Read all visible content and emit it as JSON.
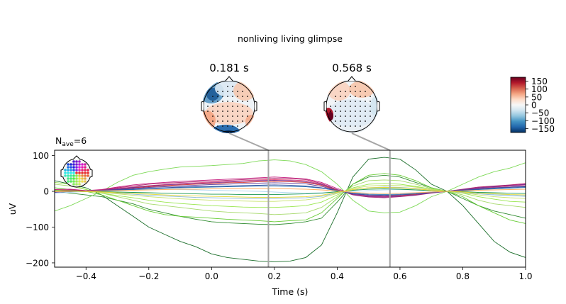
{
  "suptitle": "nonliving living glimpse",
  "topomaps": [
    {
      "label": "0.181 s",
      "time": 0.181
    },
    {
      "label": "0.568 s",
      "time": 0.568
    }
  ],
  "colorbar": {
    "ticks": [
      150,
      100,
      50,
      0,
      -50,
      -100,
      -150
    ],
    "tick_labels": [
      "150",
      "100",
      "50",
      "0",
      "−50",
      "−100",
      "−150"
    ],
    "range": [
      -175,
      175
    ],
    "cmap": "RdBu_r",
    "colors": [
      "#053061",
      "#2166ac",
      "#4393c3",
      "#92c5de",
      "#d1e5f0",
      "#f7f7f7",
      "#fddbc7",
      "#f4a582",
      "#d6604d",
      "#b2182b",
      "#67001f"
    ]
  },
  "annotation": {
    "prefix": "N",
    "subscript": "ave",
    "suffix": "=6"
  },
  "chart_data": {
    "type": "line",
    "title": "",
    "xlabel": "Time (s)",
    "ylabel": "uV",
    "xlim": [
      -0.5,
      1.0
    ],
    "ylim": [
      -212,
      115
    ],
    "xticks": [
      -0.4,
      -0.2,
      0.0,
      0.2,
      0.4,
      0.6,
      0.8,
      1.0
    ],
    "xtick_labels": [
      "−0.4",
      "−0.2",
      "0.0",
      "0.2",
      "0.4",
      "0.6",
      "0.8",
      "1.0"
    ],
    "yticks": [
      100,
      0,
      -100,
      -200
    ],
    "ytick_labels": [
      "100",
      "0",
      "−100",
      "−200"
    ],
    "grid": false,
    "marker_times": [
      0.181,
      0.568
    ],
    "x": [
      -0.5,
      -0.45,
      -0.4,
      -0.35,
      -0.3,
      -0.25,
      -0.2,
      -0.15,
      -0.1,
      -0.05,
      0.0,
      0.05,
      0.1,
      0.15,
      0.2,
      0.25,
      0.3,
      0.35,
      0.4,
      0.45,
      0.5,
      0.55,
      0.6,
      0.65,
      0.7,
      0.75,
      0.8,
      0.85,
      0.9,
      0.95,
      1.0
    ],
    "series": [
      {
        "color": "#1b6e2a",
        "values": [
          30,
          20,
          10,
          -10,
          -40,
          -70,
          -100,
          -120,
          -140,
          -155,
          -175,
          -185,
          -190,
          -195,
          -197,
          -195,
          -185,
          -150,
          -60,
          40,
          90,
          95,
          90,
          60,
          20,
          0,
          -40,
          -90,
          -140,
          -170,
          -185
        ]
      },
      {
        "color": "#2e8b2e",
        "values": [
          0,
          -5,
          -10,
          -15,
          -25,
          -35,
          -50,
          -60,
          -70,
          -78,
          -85,
          -88,
          -90,
          -92,
          -93,
          -90,
          -85,
          -75,
          -30,
          20,
          40,
          45,
          40,
          25,
          10,
          0,
          -20,
          -40,
          -55,
          -65,
          -75
        ]
      },
      {
        "color": "#7ed957",
        "values": [
          -55,
          -40,
          -20,
          0,
          25,
          45,
          55,
          62,
          68,
          70,
          72,
          75,
          78,
          85,
          88,
          85,
          75,
          55,
          20,
          -25,
          -55,
          -60,
          -58,
          -40,
          -15,
          0,
          20,
          40,
          55,
          65,
          80
        ]
      },
      {
        "color": "#66cc33",
        "values": [
          10,
          5,
          0,
          -10,
          -25,
          -40,
          -55,
          -65,
          -70,
          -72,
          -75,
          -78,
          -80,
          -82,
          -85,
          -82,
          -80,
          -60,
          -20,
          20,
          45,
          50,
          45,
          30,
          10,
          0,
          -15,
          -40,
          -60,
          -80,
          -90
        ]
      },
      {
        "color": "#a6d96a",
        "values": [
          20,
          15,
          5,
          -5,
          -15,
          -25,
          -35,
          -40,
          -45,
          -50,
          -55,
          -58,
          -60,
          -62,
          -65,
          -63,
          -60,
          -45,
          -15,
          15,
          30,
          32,
          30,
          20,
          8,
          0,
          -10,
          -25,
          -35,
          -40,
          -45
        ]
      },
      {
        "color": "#99e64d",
        "values": [
          25,
          20,
          5,
          -5,
          -12,
          -18,
          -25,
          -30,
          -34,
          -37,
          -40,
          -42,
          -44,
          -45,
          -45,
          -43,
          -40,
          -30,
          -10,
          10,
          20,
          22,
          20,
          14,
          6,
          0,
          -5,
          -15,
          -22,
          -28,
          -30
        ]
      },
      {
        "color": "#c6e26b",
        "values": [
          5,
          3,
          0,
          -3,
          -7,
          -11,
          -15,
          -18,
          -21,
          -23,
          -25,
          -26,
          -27,
          -28,
          -28,
          -26,
          -24,
          -18,
          -6,
          8,
          15,
          17,
          16,
          12,
          5,
          0,
          -4,
          -10,
          -15,
          -18,
          -20
        ]
      },
      {
        "color": "#8ab8d9",
        "values": [
          0,
          2,
          0,
          -2,
          -5,
          -8,
          -11,
          -13,
          -15,
          -17,
          -18,
          -19,
          -20,
          -20,
          -20,
          -19,
          -18,
          -14,
          -4,
          5,
          10,
          12,
          11,
          8,
          3,
          0,
          -3,
          -7,
          -10,
          -12,
          -14
        ]
      },
      {
        "color": "#b3d9f2",
        "values": [
          -5,
          -3,
          0,
          2,
          4,
          5,
          6,
          6,
          5,
          4,
          3,
          2,
          1,
          0,
          -2,
          -4,
          -5,
          -4,
          -2,
          0,
          2,
          4,
          5,
          4,
          2,
          0,
          -2,
          -5,
          -8,
          -10,
          -12
        ]
      },
      {
        "color": "#c51b7d",
        "values": [
          5,
          6,
          2,
          5,
          12,
          18,
          22,
          25,
          28,
          30,
          32,
          34,
          36,
          38,
          40,
          38,
          35,
          25,
          8,
          -8,
          -14,
          -15,
          -14,
          -10,
          -4,
          0,
          5,
          10,
          14,
          17,
          20
        ]
      },
      {
        "color": "#b2256e",
        "values": [
          2,
          4,
          0,
          4,
          10,
          15,
          20,
          23,
          25,
          27,
          29,
          31,
          33,
          35,
          37,
          36,
          33,
          22,
          5,
          -10,
          -16,
          -18,
          -15,
          -11,
          -5,
          0,
          6,
          12,
          15,
          18,
          22
        ]
      },
      {
        "color": "#e0457b",
        "values": [
          -2,
          2,
          1,
          3,
          8,
          12,
          16,
          19,
          22,
          24,
          26,
          28,
          30,
          32,
          33,
          32,
          30,
          20,
          4,
          -8,
          -13,
          -14,
          -12,
          -9,
          -4,
          0,
          4,
          9,
          12,
          15,
          18
        ]
      },
      {
        "color": "#d73027",
        "values": [
          0,
          3,
          1,
          2,
          6,
          10,
          13,
          16,
          18,
          20,
          22,
          24,
          25,
          27,
          28,
          27,
          25,
          17,
          3,
          -7,
          -11,
          -12,
          -11,
          -8,
          -3,
          0,
          3,
          7,
          10,
          12,
          14
        ]
      },
      {
        "color": "#7b3294",
        "values": [
          -3,
          0,
          0,
          3,
          7,
          11,
          15,
          18,
          20,
          22,
          24,
          26,
          28,
          30,
          31,
          30,
          27,
          19,
          5,
          -9,
          -15,
          -16,
          -14,
          -10,
          -4,
          0,
          5,
          10,
          13,
          16,
          19
        ]
      },
      {
        "color": "#5e3c99",
        "values": [
          1,
          1,
          -1,
          2,
          5,
          8,
          11,
          13,
          15,
          17,
          19,
          20,
          22,
          23,
          24,
          23,
          21,
          14,
          2,
          -7,
          -11,
          -12,
          -10,
          -7,
          -3,
          0,
          3,
          7,
          10,
          12,
          15
        ]
      },
      {
        "color": "#2c7bb6",
        "values": [
          0,
          2,
          0,
          1,
          3,
          5,
          7,
          9,
          10,
          11,
          12,
          13,
          14,
          15,
          15,
          14,
          13,
          9,
          2,
          -5,
          -8,
          -9,
          -8,
          -6,
          -2,
          0,
          2,
          5,
          7,
          9,
          11
        ]
      },
      {
        "color": "#3a53a4",
        "values": [
          -2,
          -1,
          1,
          2,
          4,
          6,
          8,
          10,
          12,
          13,
          14,
          15,
          16,
          17,
          18,
          17,
          15,
          10,
          2,
          -6,
          -10,
          -11,
          -10,
          -7,
          -3,
          0,
          3,
          6,
          9,
          11,
          13
        ]
      },
      {
        "color": "#1a9850",
        "values": [
          3,
          1,
          0,
          -1,
          -2,
          -3,
          -4,
          -5,
          -6,
          -7,
          -8,
          -8,
          -9,
          -9,
          -9,
          -8,
          -7,
          -5,
          -1,
          3,
          6,
          7,
          6,
          4,
          2,
          0,
          -1,
          -3,
          -4,
          -5,
          -6
        ]
      },
      {
        "color": "#fdae61",
        "values": [
          -1,
          0,
          0,
          1,
          2,
          3,
          4,
          5,
          6,
          6,
          7,
          7,
          8,
          8,
          8,
          7,
          6,
          4,
          1,
          -3,
          -5,
          -6,
          -5,
          -4,
          -2,
          0,
          1,
          3,
          4,
          5,
          6
        ]
      },
      {
        "color": "#e6d830",
        "values": [
          2,
          1,
          -1,
          -2,
          -4,
          -6,
          -8,
          -10,
          -12,
          -13,
          -14,
          -15,
          -16,
          -17,
          -17,
          -16,
          -15,
          -11,
          -3,
          5,
          10,
          11,
          10,
          7,
          3,
          0,
          -2,
          -5,
          -7,
          -9,
          -10
        ]
      }
    ]
  }
}
